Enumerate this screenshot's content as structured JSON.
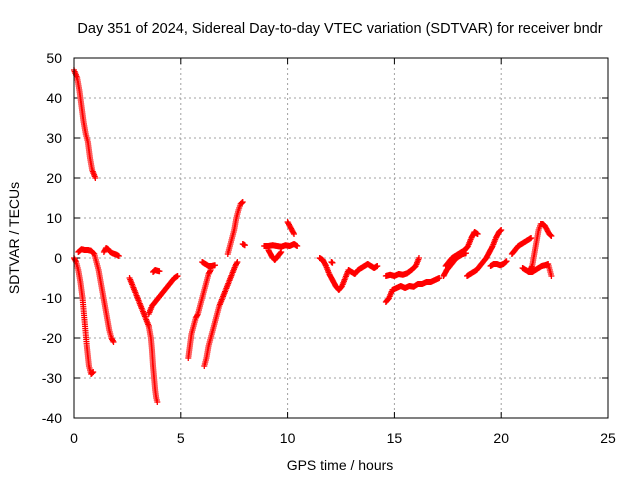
{
  "chart_data": {
    "type": "scatter",
    "title": "Day 351 of 2024, Sidereal Day-to-day VTEC variation (SDTVAR) for receiver bndr",
    "xlabel": "GPS time / hours",
    "ylabel": "SDTVAR / TECUs",
    "xlim": [
      0,
      25
    ],
    "ylim": [
      -40,
      50
    ],
    "xticks": [
      0,
      5,
      10,
      15,
      20,
      25
    ],
    "yticks": [
      -40,
      -30,
      -20,
      -10,
      0,
      10,
      20,
      30,
      40,
      50
    ],
    "grid": true,
    "marker": "+",
    "color": "#ff0000",
    "segments": [
      [
        [
          0.0,
          47
        ],
        [
          0.15,
          45
        ],
        [
          0.25,
          42
        ],
        [
          0.35,
          38
        ],
        [
          0.45,
          34
        ],
        [
          0.55,
          31
        ],
        [
          0.65,
          29
        ],
        [
          0.75,
          25
        ],
        [
          0.85,
          22
        ],
        [
          1.0,
          20
        ]
      ],
      [
        [
          0.0,
          0
        ],
        [
          0.1,
          -1
        ],
        [
          0.2,
          -3
        ],
        [
          0.3,
          -6
        ],
        [
          0.4,
          -10
        ],
        [
          0.5,
          -16
        ],
        [
          0.6,
          -22
        ],
        [
          0.7,
          -27
        ],
        [
          0.8,
          -29
        ],
        [
          0.9,
          -28.5
        ]
      ],
      [
        [
          0.2,
          1.5
        ],
        [
          0.35,
          2.2
        ],
        [
          0.5,
          2
        ],
        [
          0.65,
          2
        ],
        [
          0.8,
          1.8
        ],
        [
          0.95,
          1
        ],
        [
          1.05,
          -1
        ],
        [
          1.15,
          -3
        ],
        [
          1.25,
          -6
        ],
        [
          1.35,
          -9
        ],
        [
          1.45,
          -12
        ],
        [
          1.55,
          -15
        ],
        [
          1.65,
          -18
        ],
        [
          1.75,
          -20
        ],
        [
          1.85,
          -21
        ]
      ],
      [
        [
          1.4,
          1.5
        ],
        [
          1.5,
          2.5
        ],
        [
          1.6,
          2.2
        ],
        [
          1.7,
          1.5
        ],
        [
          1.8,
          1.2
        ],
        [
          1.9,
          1
        ],
        [
          2.0,
          0.8
        ],
        [
          2.1,
          0.5
        ]
      ],
      [
        [
          2.6,
          -5
        ],
        [
          2.75,
          -7
        ],
        [
          2.9,
          -9
        ],
        [
          3.05,
          -11
        ],
        [
          3.2,
          -13
        ],
        [
          3.35,
          -15
        ],
        [
          3.5,
          -17
        ]
      ],
      [
        [
          3.5,
          -17
        ],
        [
          3.6,
          -20
        ],
        [
          3.65,
          -23
        ],
        [
          3.7,
          -27
        ],
        [
          3.75,
          -30
        ],
        [
          3.8,
          -33
        ],
        [
          3.85,
          -35
        ],
        [
          3.9,
          -36
        ]
      ],
      [
        [
          3.5,
          -14
        ],
        [
          3.65,
          -12
        ],
        [
          3.8,
          -11
        ],
        [
          3.95,
          -10
        ],
        [
          4.1,
          -9
        ],
        [
          4.25,
          -8
        ],
        [
          4.4,
          -7
        ],
        [
          4.55,
          -6
        ],
        [
          4.7,
          -5
        ],
        [
          4.85,
          -4.5
        ]
      ],
      [
        [
          3.7,
          -3.5
        ],
        [
          3.8,
          -3
        ],
        [
          3.9,
          -3.2
        ],
        [
          4.0,
          -3.3
        ]
      ],
      [
        [
          5.35,
          -25
        ],
        [
          5.4,
          -23
        ],
        [
          5.45,
          -21
        ],
        [
          5.5,
          -19
        ],
        [
          5.6,
          -17
        ],
        [
          5.7,
          -15
        ],
        [
          5.8,
          -14
        ],
        [
          5.9,
          -12
        ],
        [
          6.0,
          -10
        ],
        [
          6.1,
          -8
        ],
        [
          6.2,
          -6
        ],
        [
          6.3,
          -4
        ],
        [
          6.4,
          -3
        ]
      ],
      [
        [
          6.0,
          -1
        ],
        [
          6.15,
          -1.5
        ],
        [
          6.3,
          -2
        ],
        [
          6.45,
          -2
        ],
        [
          6.6,
          -1.8
        ]
      ],
      [
        [
          6.1,
          -27
        ],
        [
          6.2,
          -25
        ],
        [
          6.3,
          -22
        ],
        [
          6.4,
          -20
        ],
        [
          6.5,
          -18
        ],
        [
          6.65,
          -15
        ],
        [
          6.8,
          -12
        ],
        [
          6.95,
          -10
        ],
        [
          7.1,
          -8
        ],
        [
          7.25,
          -6
        ],
        [
          7.4,
          -4
        ],
        [
          7.55,
          -2
        ],
        [
          7.65,
          -1
        ]
      ],
      [
        [
          7.2,
          1
        ],
        [
          7.35,
          4
        ],
        [
          7.5,
          7
        ],
        [
          7.6,
          10
        ],
        [
          7.7,
          12
        ],
        [
          7.8,
          13.5
        ],
        [
          7.9,
          14
        ]
      ],
      [
        [
          7.9,
          3.5
        ],
        [
          8.0,
          3.2
        ]
      ],
      [
        [
          8.9,
          3
        ],
        [
          9.1,
          3
        ],
        [
          9.3,
          3.2
        ],
        [
          9.5,
          3
        ],
        [
          9.7,
          2.8
        ],
        [
          9.9,
          3.2
        ],
        [
          10.1,
          3
        ],
        [
          10.3,
          3.5
        ],
        [
          10.45,
          3
        ]
      ],
      [
        [
          9.1,
          2
        ],
        [
          9.25,
          0.5
        ],
        [
          9.4,
          -0.5
        ],
        [
          9.55,
          0.5
        ],
        [
          9.7,
          1.5
        ]
      ],
      [
        [
          10.0,
          9
        ],
        [
          10.1,
          8
        ],
        [
          10.2,
          7
        ],
        [
          10.3,
          6
        ]
      ],
      [
        [
          11.5,
          0
        ],
        [
          11.65,
          -0.5
        ],
        [
          11.8,
          -2
        ],
        [
          11.95,
          -4
        ],
        [
          12.1,
          -5.5
        ],
        [
          12.25,
          -7
        ],
        [
          12.4,
          -8
        ],
        [
          12.55,
          -7
        ],
        [
          12.7,
          -5
        ],
        [
          12.85,
          -3
        ],
        [
          13.0,
          -3.5
        ],
        [
          13.15,
          -4
        ],
        [
          13.3,
          -3
        ],
        [
          13.45,
          -2.5
        ],
        [
          13.6,
          -2
        ],
        [
          13.75,
          -1.5
        ],
        [
          13.9,
          -2
        ],
        [
          14.05,
          -2.5
        ],
        [
          14.2,
          -2
        ]
      ],
      [
        [
          12.05,
          -1
        ],
        [
          12.1,
          -1.2
        ]
      ],
      [
        [
          14.6,
          -4.5
        ],
        [
          14.8,
          -4.2
        ],
        [
          15.0,
          -4.5
        ],
        [
          15.2,
          -4
        ],
        [
          15.4,
          -4.2
        ],
        [
          15.6,
          -3.8
        ],
        [
          15.8,
          -3
        ],
        [
          16.0,
          -2
        ],
        [
          16.15,
          0
        ]
      ],
      [
        [
          14.6,
          -11
        ],
        [
          14.75,
          -10
        ],
        [
          14.9,
          -8
        ],
        [
          15.1,
          -7.5
        ],
        [
          15.3,
          -7
        ],
        [
          15.5,
          -7.5
        ],
        [
          15.7,
          -7
        ],
        [
          15.9,
          -7.2
        ],
        [
          16.1,
          -6.5
        ],
        [
          16.3,
          -6.5
        ],
        [
          16.5,
          -6
        ],
        [
          16.7,
          -6
        ],
        [
          16.9,
          -5.5
        ],
        [
          17.1,
          -5
        ]
      ],
      [
        [
          17.3,
          -4.5
        ],
        [
          17.45,
          -3
        ],
        [
          17.6,
          -2
        ],
        [
          17.75,
          -1
        ],
        [
          17.9,
          0
        ],
        [
          18.05,
          0.5
        ],
        [
          18.2,
          1
        ],
        [
          18.35,
          1.2
        ]
      ],
      [
        [
          17.4,
          -2
        ],
        [
          17.55,
          -1
        ],
        [
          17.7,
          0
        ],
        [
          17.85,
          0.5
        ],
        [
          18.0,
          1
        ],
        [
          18.15,
          1.5
        ],
        [
          18.3,
          2
        ],
        [
          18.45,
          3
        ],
        [
          18.6,
          5
        ],
        [
          18.75,
          6.5
        ],
        [
          18.9,
          6
        ]
      ],
      [
        [
          18.4,
          -4.5
        ],
        [
          18.55,
          -4
        ],
        [
          18.7,
          -3.5
        ],
        [
          18.85,
          -3
        ],
        [
          19.0,
          -2
        ],
        [
          19.15,
          -1
        ],
        [
          19.3,
          0
        ],
        [
          19.45,
          1.5
        ],
        [
          19.6,
          3
        ],
        [
          19.75,
          5
        ],
        [
          19.9,
          6.5
        ],
        [
          20.0,
          7
        ]
      ],
      [
        [
          19.5,
          -2
        ],
        [
          19.65,
          -1.5
        ],
        [
          19.8,
          -1.5
        ],
        [
          19.95,
          -1.8
        ],
        [
          20.1,
          -1.5
        ],
        [
          20.25,
          -0.8
        ]
      ],
      [
        [
          20.5,
          1
        ],
        [
          20.65,
          2
        ],
        [
          20.8,
          3
        ],
        [
          20.95,
          3.5
        ],
        [
          21.1,
          4
        ],
        [
          21.25,
          4.5
        ],
        [
          21.4,
          5
        ]
      ],
      [
        [
          21.0,
          -2.5
        ],
        [
          21.15,
          -3
        ],
        [
          21.3,
          -3.5
        ],
        [
          21.45,
          -2
        ],
        [
          21.55,
          1
        ],
        [
          21.65,
          4
        ],
        [
          21.75,
          7
        ],
        [
          21.85,
          8.5
        ],
        [
          21.95,
          8.5
        ],
        [
          22.05,
          8
        ],
        [
          22.15,
          7
        ],
        [
          22.25,
          6
        ],
        [
          22.35,
          5.5
        ]
      ],
      [
        [
          21.3,
          -3.5
        ],
        [
          21.45,
          -3.5
        ],
        [
          21.6,
          -3
        ],
        [
          21.75,
          -2.5
        ],
        [
          21.9,
          -2
        ],
        [
          22.05,
          -1.8
        ],
        [
          22.2,
          -1.5
        ],
        [
          22.35,
          -4.5
        ]
      ]
    ]
  }
}
